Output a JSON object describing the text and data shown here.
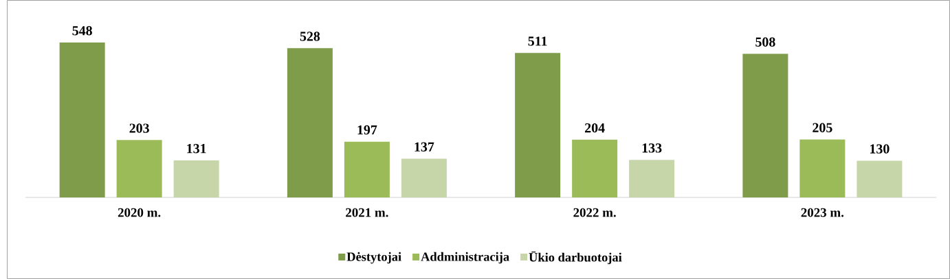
{
  "chart_data": {
    "type": "bar",
    "categories": [
      "2020 m.",
      "2021 m.",
      "2022 m.",
      "2023 m."
    ],
    "series": [
      {
        "name": "Dėstytojai",
        "color": "#7f9c4a",
        "values": [
          548,
          528,
          511,
          508
        ]
      },
      {
        "name": "Addministracija",
        "color": "#9bbb59",
        "values": [
          203,
          197,
          204,
          205
        ]
      },
      {
        "name": "Ūkio darbuotojai",
        "color": "#c6d6a8",
        "values": [
          131,
          137,
          133,
          130
        ]
      }
    ],
    "data_labels": true,
    "legend": "bottom"
  }
}
